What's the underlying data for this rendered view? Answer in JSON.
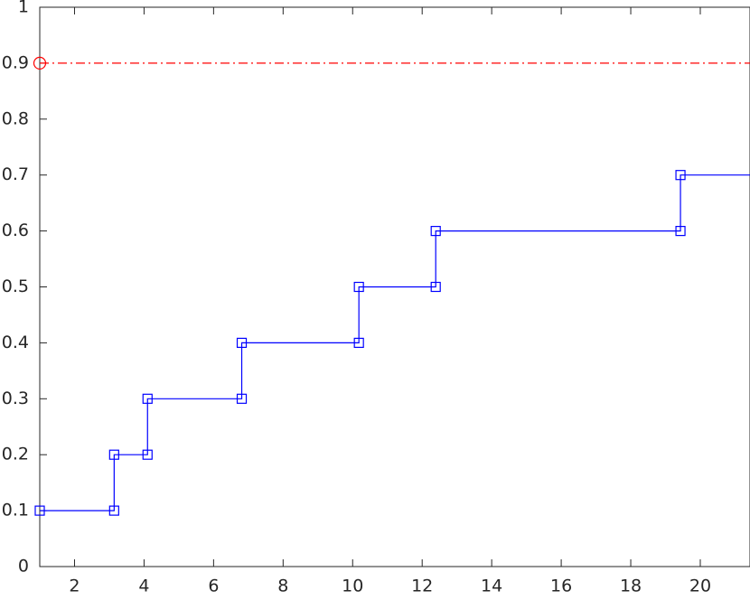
{
  "chart_data": {
    "type": "stairs",
    "x": [
      1,
      3.14,
      4.1,
      6.81,
      10.18,
      12.39,
      19.43
    ],
    "series": [
      {
        "color": "#0000ff",
        "marker": "square",
        "values": [
          0.1,
          0.2,
          0.3,
          0.4,
          0.5,
          0.6,
          0.7
        ]
      }
    ],
    "reference": {
      "x": 1,
      "value": 0.9,
      "color": "#ff0000",
      "marker": "circle",
      "style": "dash-dot"
    },
    "xlim": [
      1,
      21.43
    ],
    "ylim": [
      0,
      1
    ],
    "xticks": [
      2,
      4,
      6,
      8,
      10,
      12,
      14,
      16,
      18,
      20
    ],
    "yticks": [
      0,
      0.1,
      0.2,
      0.3,
      0.4,
      0.5,
      0.6,
      0.7,
      0.8,
      0.9,
      1
    ]
  }
}
